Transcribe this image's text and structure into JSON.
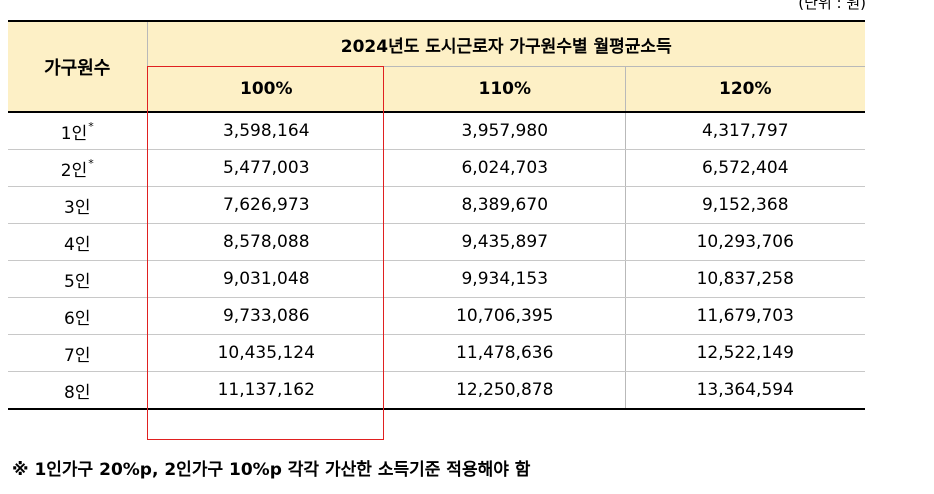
{
  "unit_label": "(단위 : 원)",
  "table": {
    "row_header": "가구원수",
    "group_header": "2024년도 도시근로자 가구원수별 월평균소득",
    "columns": [
      "100%",
      "110%",
      "120%"
    ],
    "rows": [
      {
        "label": "1인",
        "mark": "*",
        "values": [
          "3,598,164",
          "3,957,980",
          "4,317,797"
        ]
      },
      {
        "label": "2인",
        "mark": "*",
        "values": [
          "5,477,003",
          "6,024,703",
          "6,572,404"
        ]
      },
      {
        "label": "3인",
        "mark": "",
        "values": [
          "7,626,973",
          "8,389,670",
          "9,152,368"
        ]
      },
      {
        "label": "4인",
        "mark": "",
        "values": [
          "8,578,088",
          "9,435,897",
          "10,293,706"
        ]
      },
      {
        "label": "5인",
        "mark": "",
        "values": [
          "9,031,048",
          "9,934,153",
          "10,837,258"
        ]
      },
      {
        "label": "6인",
        "mark": "",
        "values": [
          "9,733,086",
          "10,706,395",
          "11,679,703"
        ]
      },
      {
        "label": "7인",
        "mark": "",
        "values": [
          "10,435,124",
          "11,478,636",
          "12,522,149"
        ]
      },
      {
        "label": "8인",
        "mark": "",
        "values": [
          "11,137,162",
          "12,250,878",
          "13,364,594"
        ]
      }
    ]
  },
  "footnote": "※ 1인가구 20%p, 2인가구 10%p 각각 가산한 소득기준 적용해야 함",
  "colors": {
    "header_bg": "#fdf0c6",
    "highlight_border": "#e02020"
  }
}
